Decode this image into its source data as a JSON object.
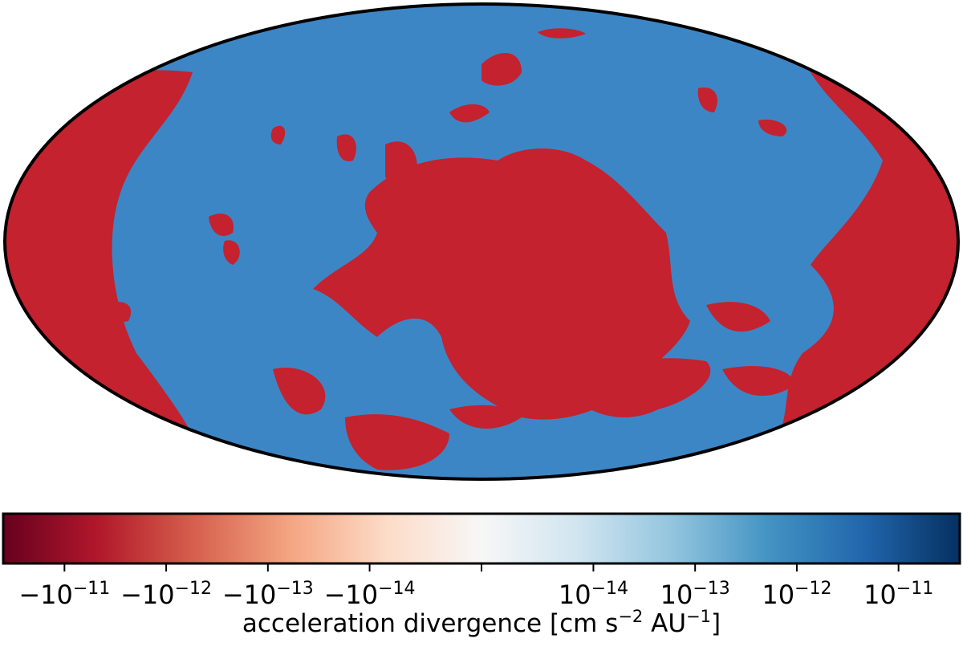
{
  "chart_data": {
    "type": "mollweide",
    "projection": "mollweide",
    "colorbar": {
      "scale": "symlog",
      "linthresh": 1e-14,
      "linscale": 1.1,
      "clim": [
        -4e-11,
        4e-11
      ],
      "colors": [
        "#67001f",
        "#b2182b",
        "#d6604d",
        "#f4a582",
        "#fddbc7",
        "#f7f7f7",
        "#d1e5f0",
        "#92c5de",
        "#4393c3",
        "#2166ac",
        "#053061"
      ],
      "ticks": [
        {
          "value": -1e-11,
          "label": [
            "−10",
            "−11"
          ]
        },
        {
          "value": -1e-12,
          "label": [
            "−10",
            "−12"
          ]
        },
        {
          "value": -1e-13,
          "label": [
            "−10",
            "−13"
          ]
        },
        {
          "value": -1e-14,
          "label": [
            "−10",
            "−14"
          ]
        },
        {
          "value": 0,
          "label": null
        },
        {
          "value": 1e-14,
          "label": [
            "10",
            "−14"
          ]
        },
        {
          "value": 1e-13,
          "label": [
            "10",
            "−13"
          ]
        },
        {
          "value": 1e-12,
          "label": [
            "10",
            "−12"
          ]
        },
        {
          "value": 1e-11,
          "label": [
            "10",
            "−11"
          ]
        }
      ],
      "label": [
        "acceleration divergence [cm s",
        "−2",
        " AU",
        "−1",
        "]"
      ]
    }
  }
}
